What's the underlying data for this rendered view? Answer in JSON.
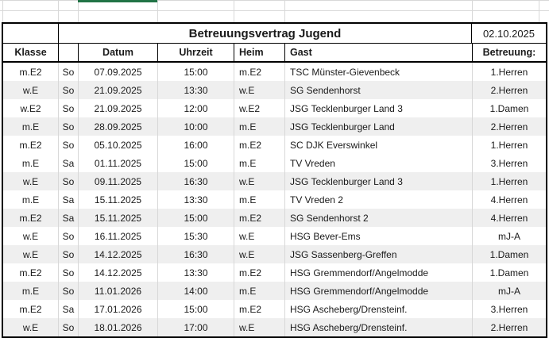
{
  "colors": {
    "stripe": "#efefef",
    "gridline": "#d8d8d8",
    "table_border": "#000000",
    "selection_green": "#217346"
  },
  "selection": {
    "note": "bottom edge of selected cell visible at top over Datum column"
  },
  "table": {
    "title": "Betreuungsvertrag Jugend",
    "date": "02.10.2025",
    "headers": {
      "klasse": "Klasse",
      "day": "",
      "datum": "Datum",
      "uhrzeit": "Uhrzeit",
      "heim": "Heim",
      "gast": "Gast",
      "betreuung": "Betreuung:"
    },
    "rows": [
      {
        "klasse": "m.E2",
        "day": "So",
        "datum": "07.09.2025",
        "uhrzeit": "15:00",
        "heim": "m.E2",
        "gast": "TSC Münster-Gievenbeck",
        "betreuung": "1.Herren",
        "shaded": false
      },
      {
        "klasse": "w.E",
        "day": "So",
        "datum": "21.09.2025",
        "uhrzeit": "13:30",
        "heim": "w.E",
        "gast": "SG Sendenhorst",
        "betreuung": "2.Herren",
        "shaded": true
      },
      {
        "klasse": "w.E2",
        "day": "So",
        "datum": "21.09.2025",
        "uhrzeit": "12:00",
        "heim": "w.E2",
        "gast": "JSG Tecklenburger Land 3",
        "betreuung": "1.Damen",
        "shaded": false
      },
      {
        "klasse": "m.E",
        "day": "So",
        "datum": "28.09.2025",
        "uhrzeit": "10:00",
        "heim": "m.E",
        "gast": "JSG Tecklenburger Land",
        "betreuung": "2.Herren",
        "shaded": true
      },
      {
        "klasse": "m.E2",
        "day": "So",
        "datum": "05.10.2025",
        "uhrzeit": "16:00",
        "heim": "m.E2",
        "gast": "SC DJK Everswinkel",
        "betreuung": "1.Herren",
        "shaded": false
      },
      {
        "klasse": "m.E",
        "day": "Sa",
        "datum": "01.11.2025",
        "uhrzeit": "15:00",
        "heim": "m.E",
        "gast": "TV Vreden",
        "betreuung": "3.Herren",
        "shaded": false
      },
      {
        "klasse": "w.E",
        "day": "So",
        "datum": "09.11.2025",
        "uhrzeit": "16:30",
        "heim": "w.E",
        "gast": "JSG Tecklenburger Land 3",
        "betreuung": "1.Herren",
        "shaded": true
      },
      {
        "klasse": "m.E",
        "day": "Sa",
        "datum": "15.11.2025",
        "uhrzeit": "13:30",
        "heim": "m.E",
        "gast": "TV Vreden 2",
        "betreuung": "4.Herren",
        "shaded": false
      },
      {
        "klasse": "m.E2",
        "day": "Sa",
        "datum": "15.11.2025",
        "uhrzeit": "15:00",
        "heim": "m.E2",
        "gast": "SG Sendenhorst 2",
        "betreuung": "4.Herren",
        "shaded": true
      },
      {
        "klasse": "w.E",
        "day": "So",
        "datum": "16.11.2025",
        "uhrzeit": "15:30",
        "heim": "w.E",
        "gast": "HSG Bever-Ems",
        "betreuung": "mJ-A",
        "shaded": false
      },
      {
        "klasse": "w.E",
        "day": "So",
        "datum": "14.12.2025",
        "uhrzeit": "16:30",
        "heim": "w.E",
        "gast": "JSG Sassenberg-Greffen",
        "betreuung": "1.Damen",
        "shaded": true
      },
      {
        "klasse": "m.E2",
        "day": "So",
        "datum": "14.12.2025",
        "uhrzeit": "13:30",
        "heim": "m.E2",
        "gast": "HSG Gremmendorf/Angelmodde",
        "betreuung": "1.Damen",
        "shaded": false
      },
      {
        "klasse": "m.E",
        "day": "So",
        "datum": "11.01.2026",
        "uhrzeit": "14:00",
        "heim": "m.E",
        "gast": "HSG Gremmendorf/Angelmodde",
        "betreuung": "mJ-A",
        "shaded": true
      },
      {
        "klasse": "m.E2",
        "day": "Sa",
        "datum": "17.01.2026",
        "uhrzeit": "15:00",
        "heim": "m.E2",
        "gast": "HSG Ascheberg/Drensteinf.",
        "betreuung": "3.Herren",
        "shaded": false
      },
      {
        "klasse": "w.E",
        "day": "So",
        "datum": "18.01.2026",
        "uhrzeit": "17:00",
        "heim": "w.E",
        "gast": "HSG Ascheberg/Drensteinf.",
        "betreuung": "2.Herren",
        "shaded": true
      }
    ]
  }
}
